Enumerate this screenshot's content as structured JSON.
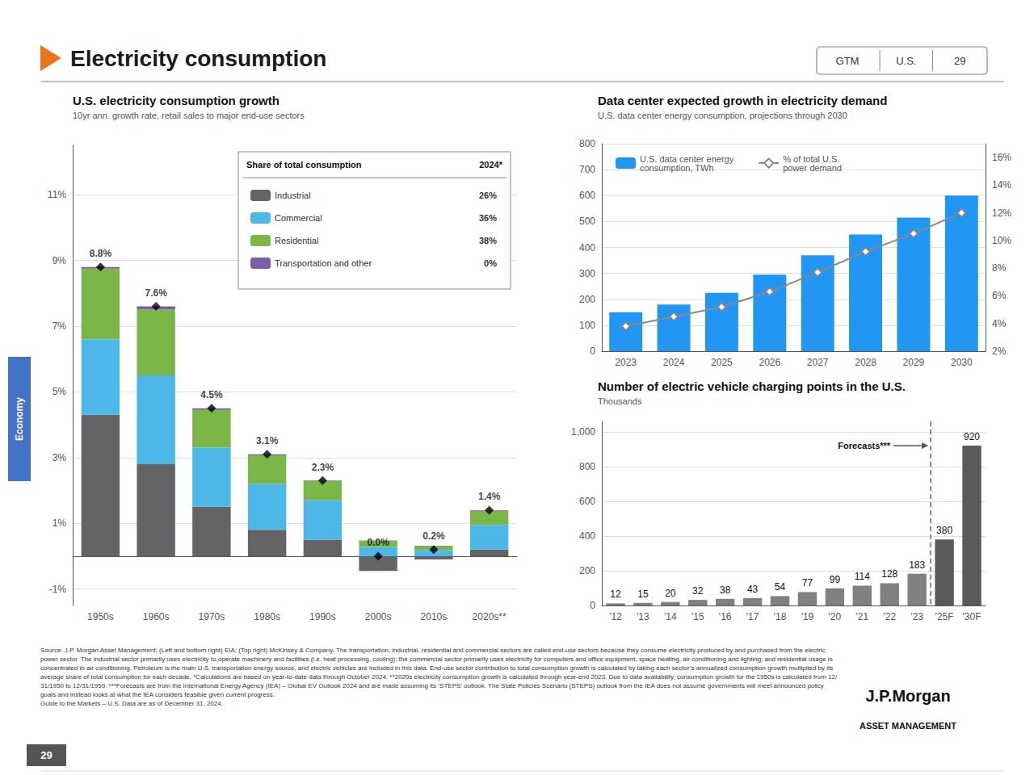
{
  "title": "Electricity consumption",
  "badges": [
    "GTM",
    "U.S.",
    "29"
  ],
  "sidebar": "Economy",
  "footer": "Source: J.P. Morgan Asset Management; (Left and bottom right) EIA; (Top right) McKinsey & Company. The transportation, industrial, residential and commercial sectors are called end-use sectors because they consume electricity produced by and purchased from the electric power sector. The industrial sector primarily uses electricity to operate machinery and facilities (i.e. heat processing, cooling); the commercial sector primarily uses electricity for computers and office equipment, space heating, air conditioning and lighting; and residential usage is concentrated in air conditioning. Petroleum is the main U.S. transportation energy source, and electric vehicles are included in this data. End-use sector contribution to total consumption growth is calculated by taking each sector’s annualized consumption growth multiplied by its average share of total consumption for each decade. *Calculations are based on year-to-date data through October 2024. **2020s electricity consumption growth is calculated through year-end 2023. Due to data availability, consumption growth for the 1950s is calculated from 12/31/1950 to 12/31/1959. ***Forecasts are from the International Energy Agency (IEA) – Global EV Outlook 2024 and are made assuming its ‘STEPS’ outlook. The State Policies Scenario (STEPS) outlook from the IEA does not assume governments will meet announced policy goals and instead looks at what the IEA considers feasible given current progress.\nGuide to the Markets – U.S. Data are as of December 31, 2024.",
  "logo": [
    "J.P.Morgan",
    "ASSET MANAGEMENT"
  ],
  "page_number": "29",
  "chart_data": [
    {
      "type": "bar",
      "stacked": true,
      "title": "U.S. electricity consumption growth",
      "subtitle": "10yr ann. growth rate, retail sales to major end-use sectors",
      "categories": [
        "1950s",
        "1960s",
        "1970s",
        "1980s",
        "1990s",
        "2000s",
        "2010s",
        "2020s**"
      ],
      "series": [
        {
          "name": "Industrial",
          "color": "#636466",
          "values": [
            4.3,
            2.8,
            1.5,
            0.8,
            0.5,
            -0.45,
            -0.1,
            0.2
          ],
          "share": "26%"
        },
        {
          "name": "Commercial",
          "color": "#4db8e8",
          "values": [
            2.3,
            2.7,
            1.8,
            1.4,
            1.2,
            0.28,
            0.18,
            0.75
          ],
          "share": "36%"
        },
        {
          "name": "Residential",
          "color": "#7ab648",
          "values": [
            2.15,
            2.0,
            1.15,
            0.87,
            0.58,
            0.18,
            0.12,
            0.43
          ],
          "share": "38%"
        },
        {
          "name": "Transportation and other",
          "color": "#7b5ea7",
          "values": [
            0.05,
            0.1,
            0.05,
            0.03,
            0.02,
            0.02,
            0.02,
            0.02
          ],
          "share": "0%"
        },
        {
          "type": "scatter",
          "marker": "diamond",
          "color": "#000000",
          "values": [
            8.8,
            7.6,
            4.5,
            3.1,
            2.3,
            0.0,
            0.2,
            1.4
          ],
          "data_labels": true,
          "value_labels": [
            "8.8%",
            "7.6%",
            "4.5%",
            "3.1%",
            "2.3%",
            "0.0%",
            "0.2%",
            "1.4%"
          ]
        }
      ],
      "ylim": [
        -1.5,
        12.5
      ],
      "yticks": [
        {
          "value": -1,
          "label": "-1%"
        },
        {
          "value": 1,
          "label": "1%"
        },
        {
          "value": 3,
          "label": "3%"
        },
        {
          "value": 5,
          "label": "5%"
        },
        {
          "value": 7,
          "label": "7%"
        },
        {
          "value": 9,
          "label": "9%"
        },
        {
          "value": 11,
          "label": "11%"
        }
      ],
      "grid": true,
      "legend": "upper right",
      "legend_title": "Share of total consumption",
      "legend_note": "2024*"
    },
    {
      "type": "bar",
      "title": "Data center expected growth in electricity demand",
      "subtitle": "U.S. data center energy consumption, projections through 2030",
      "categories": [
        "2023",
        "2024",
        "2025",
        "2026",
        "2027",
        "2028",
        "2029",
        "2030"
      ],
      "series": [
        {
          "name": "U.S. data center energy\nconsumption, TWh",
          "color": "#2196F3",
          "values": [
            150,
            180,
            225,
            295,
            370,
            450,
            515,
            600
          ]
        },
        {
          "name": "% of total U.S.\npower demand",
          "type": "line",
          "axis": "y2",
          "marker": "diamond",
          "color": "#888888",
          "values": [
            3.8,
            4.5,
            5.2,
            6.3,
            7.7,
            9.2,
            10.5,
            12.0
          ]
        }
      ],
      "ylim": [
        0,
        800
      ],
      "yticks": [
        0,
        100,
        200,
        300,
        400,
        500,
        600,
        700,
        800
      ],
      "y2lim": [
        2.0,
        17.0
      ],
      "y2ticks": [
        {
          "value": 2,
          "label": "2%"
        },
        {
          "value": 4,
          "label": "4%"
        },
        {
          "value": 6,
          "label": "6%"
        },
        {
          "value": 8,
          "label": "8%"
        },
        {
          "value": 10,
          "label": "10%"
        },
        {
          "value": 12,
          "label": "12%"
        },
        {
          "value": 14,
          "label": "14%"
        },
        {
          "value": 16,
          "label": "16%"
        }
      ],
      "grid": true,
      "legend": "upper left"
    },
    {
      "type": "bar",
      "title": "Number of electric vehicle charging points in the U.S.",
      "subtitle": "Thousands",
      "categories": [
        "'12",
        "'13",
        "'14",
        "'15",
        "'16",
        "'17",
        "'18",
        "'19",
        "'20",
        "'21",
        "'22",
        "'23",
        "'25F",
        "'30F"
      ],
      "values": [
        12,
        15,
        20,
        32,
        38,
        43,
        54,
        77,
        99,
        114,
        128,
        183,
        380,
        920
      ],
      "colors": [
        "#808080",
        "#808080",
        "#808080",
        "#808080",
        "#808080",
        "#808080",
        "#808080",
        "#808080",
        "#808080",
        "#808080",
        "#808080",
        "#808080",
        "#5a5a5a",
        "#5a5a5a"
      ],
      "data_labels": true,
      "ylim": [
        0,
        1060
      ],
      "yticks": [
        0,
        200,
        400,
        600,
        800,
        {
          "value": 1000,
          "label": "1,000"
        }
      ],
      "grid": true,
      "annotations": [
        {
          "text": "Forecasts***",
          "x": "'25F"
        }
      ]
    }
  ]
}
